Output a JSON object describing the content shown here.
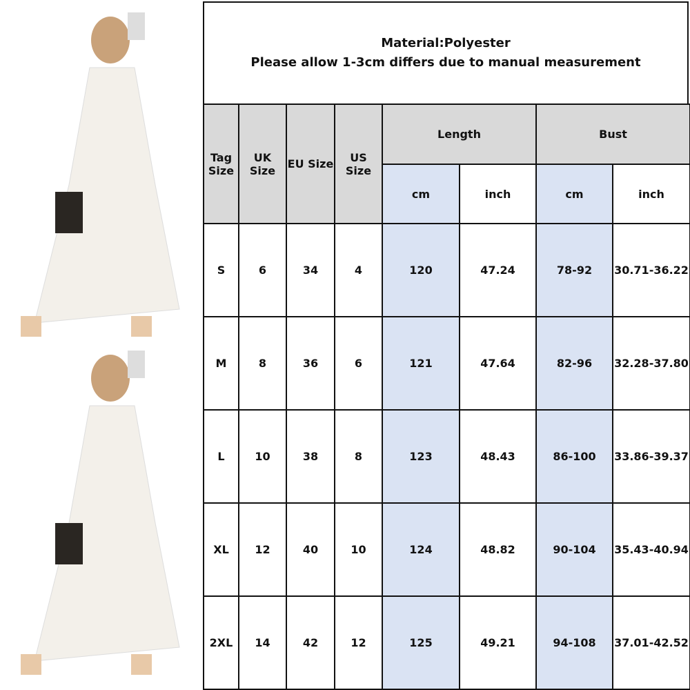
{
  "header": {
    "line1": "Material:Polyester",
    "line2": "Please allow 1-3cm differs due to manual measurement"
  },
  "table": {
    "columns": [
      "Tag Size",
      "UK Size",
      "EU Size",
      "US Size"
    ],
    "groups": [
      "Length",
      "Bust"
    ],
    "units": [
      "cm",
      "inch",
      "cm",
      "inch"
    ],
    "rows": [
      [
        "S",
        "6",
        "34",
        "4",
        "120",
        "47.24",
        "78-92",
        "30.71-36.22"
      ],
      [
        "M",
        "8",
        "36",
        "6",
        "121",
        "47.64",
        "82-96",
        "32.28-37.80"
      ],
      [
        "L",
        "10",
        "38",
        "8",
        "123",
        "48.43",
        "86-100",
        "33.86-39.37"
      ],
      [
        "XL",
        "12",
        "40",
        "10",
        "124",
        "48.82",
        "90-104",
        "35.43-40.94"
      ],
      [
        "2XL",
        "14",
        "42",
        "12",
        "125",
        "49.21",
        "94-108",
        "37.01-42.52"
      ]
    ]
  },
  "colors": {
    "header_grey": "#d9d9d9",
    "cm_blue": "#dae3f3"
  }
}
